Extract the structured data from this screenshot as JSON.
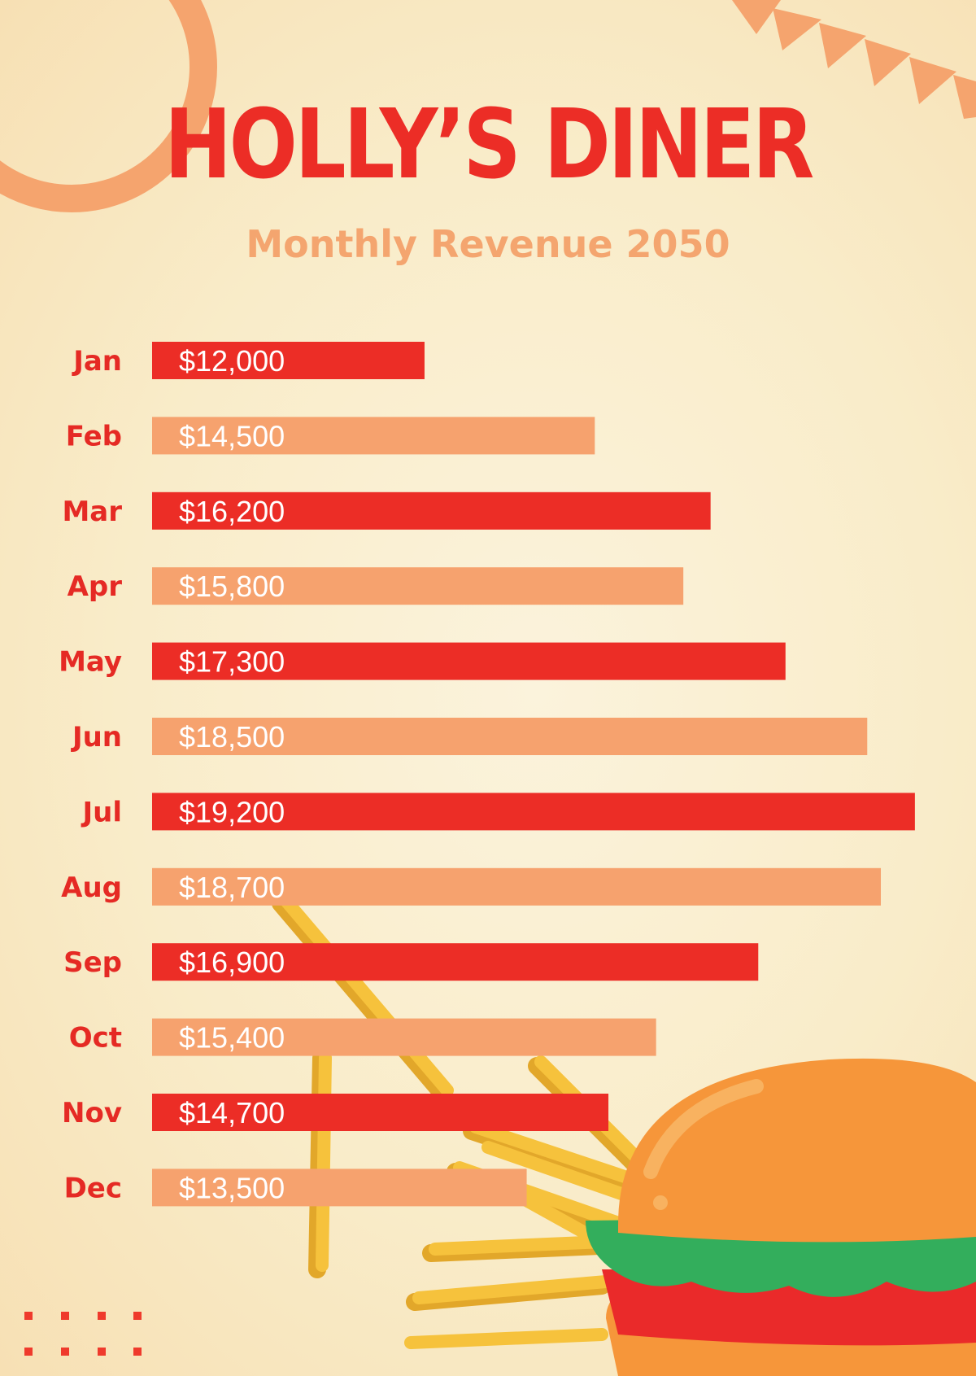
{
  "header": {
    "title": "HOLLY’S DINER",
    "subtitle": "Monthly Revenue 2050"
  },
  "colors": {
    "title": "#ec2d26",
    "subtitle": "#f4a56f",
    "bar_primary": "#ec2d26",
    "bar_secondary": "#f6a26e",
    "month_label": "#e52a24",
    "value_label": "#ffffff",
    "background": "#f9ecc9"
  },
  "decorations": [
    "ring",
    "bunting-flags",
    "french-fries",
    "burger",
    "dot-grid"
  ],
  "chart_data": {
    "type": "bar",
    "orientation": "horizontal",
    "categories": [
      "Jan",
      "Feb",
      "Mar",
      "Apr",
      "May",
      "Jun",
      "Jul",
      "Aug",
      "Sep",
      "Oct",
      "Nov",
      "Dec"
    ],
    "values": [
      12000,
      14500,
      16200,
      15800,
      17300,
      18500,
      19200,
      18700,
      16900,
      15400,
      14700,
      13500
    ],
    "value_labels": [
      "$12,000",
      "$14,500",
      "$16,200",
      "$15,800",
      "$17,300",
      "$18,500",
      "$19,200",
      "$18,700",
      "$16,900",
      "$15,400",
      "$14,700",
      "$13,500"
    ],
    "bar_colors": [
      "#ec2d26",
      "#f6a26e",
      "#ec2d26",
      "#f6a26e",
      "#ec2d26",
      "#f6a26e",
      "#ec2d26",
      "#f6a26e",
      "#ec2d26",
      "#f6a26e",
      "#ec2d26",
      "#f6a26e"
    ],
    "xlim": [
      8000,
      19500
    ],
    "grid": false,
    "legend": "none",
    "title": "",
    "xlabel": "",
    "ylabel": ""
  }
}
